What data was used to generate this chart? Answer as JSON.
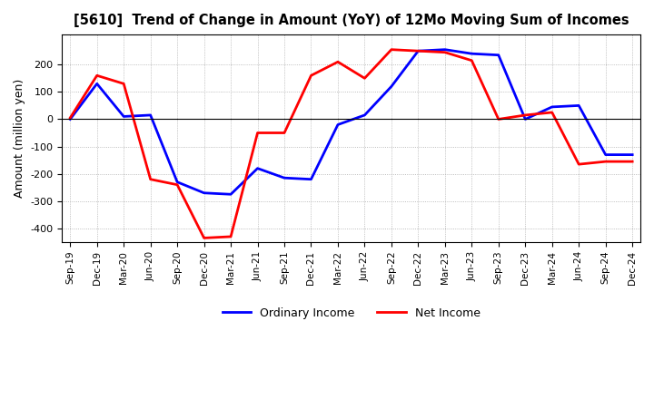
{
  "title": "[5610]  Trend of Change in Amount (YoY) of 12Mo Moving Sum of Incomes",
  "ylabel": "Amount (million yen)",
  "x_labels": [
    "Sep-19",
    "Dec-19",
    "Mar-20",
    "Jun-20",
    "Sep-20",
    "Dec-20",
    "Mar-21",
    "Jun-21",
    "Sep-21",
    "Dec-21",
    "Mar-22",
    "Jun-22",
    "Sep-22",
    "Dec-22",
    "Mar-23",
    "Jun-23",
    "Sep-23",
    "Dec-23",
    "Mar-24",
    "Jun-24",
    "Sep-24",
    "Dec-24"
  ],
  "ordinary_income": [
    0,
    130,
    10,
    15,
    -230,
    -270,
    -275,
    -180,
    -215,
    -220,
    -20,
    15,
    120,
    250,
    255,
    240,
    235,
    0,
    45,
    50,
    -130,
    -130
  ],
  "net_income": [
    5,
    160,
    130,
    -220,
    -240,
    -435,
    -430,
    -50,
    -50,
    160,
    210,
    150,
    255,
    250,
    245,
    215,
    0,
    15,
    25,
    -165,
    -155,
    -155
  ],
  "ylim": [
    -450,
    310
  ],
  "yticks": [
    200,
    100,
    0,
    -100,
    -200,
    -300,
    -400
  ],
  "ordinary_color": "#0000FF",
  "net_color": "#FF0000",
  "background_color": "#FFFFFF",
  "grid_color": "#AAAAAA",
  "legend_ordinary": "Ordinary Income",
  "legend_net": "Net Income"
}
